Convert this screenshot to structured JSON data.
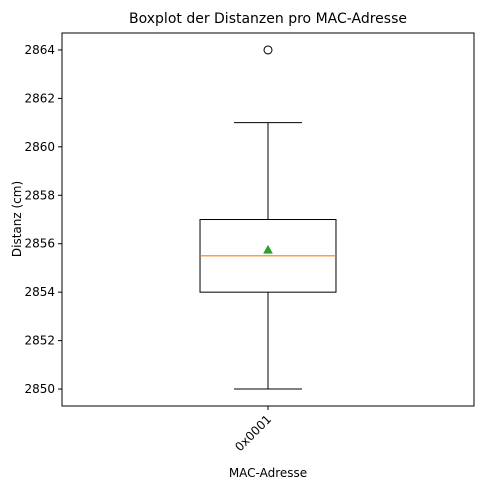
{
  "chart_data": {
    "type": "box",
    "title": "Boxplot der Distanzen pro MAC-Adresse",
    "xlabel": "MAC-Adresse",
    "ylabel": "Distanz (cm)",
    "categories": [
      "0x0001"
    ],
    "ylim": [
      2849.3,
      2864.7
    ],
    "yticks": [
      2850,
      2852,
      2854,
      2856,
      2858,
      2860,
      2862,
      2864
    ],
    "boxes": [
      {
        "category": "0x0001",
        "whisker_low": 2850,
        "q1": 2854,
        "median": 2855.5,
        "q3": 2857,
        "whisker_high": 2861,
        "mean": 2855.75,
        "outliers": [
          2864
        ]
      }
    ],
    "grid": false,
    "colors": {
      "box": "#000000",
      "median": "#ff7f0e",
      "mean": "#2ca02c",
      "outlier": "#000000"
    }
  }
}
